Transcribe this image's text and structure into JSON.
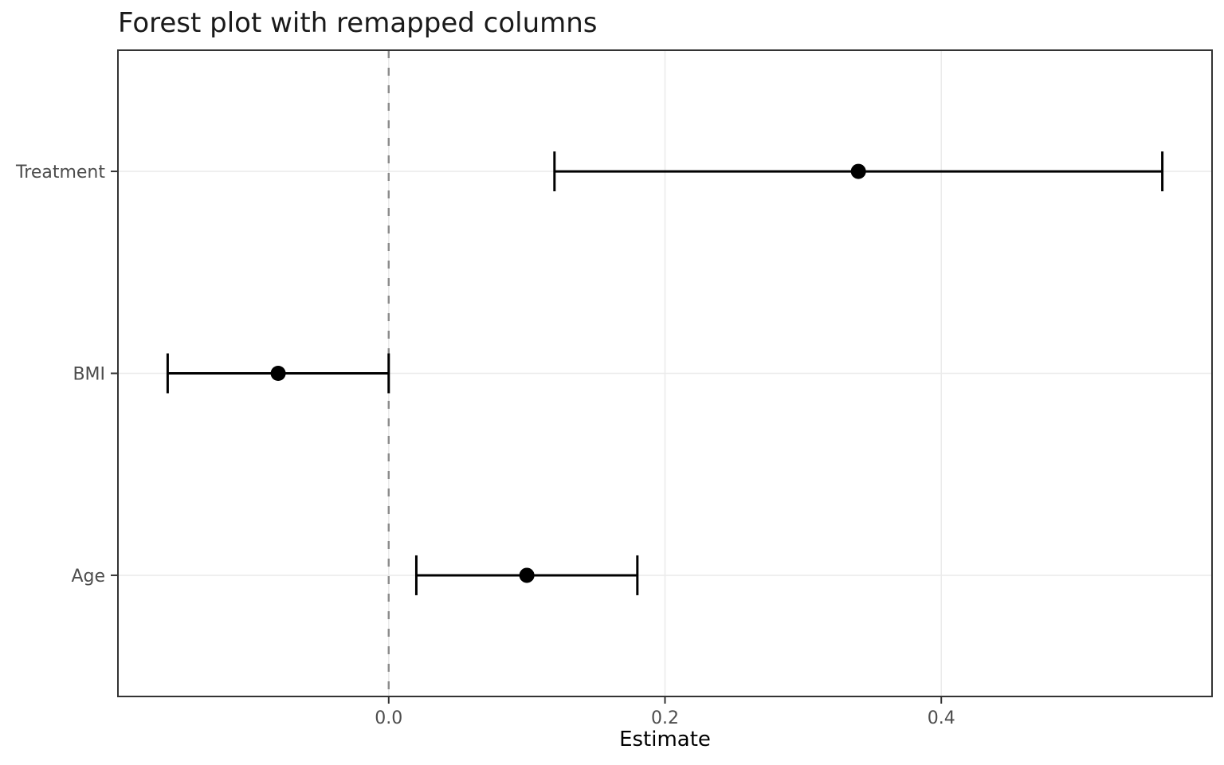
{
  "chart_data": {
    "type": "scatter",
    "variant": "forest-plot",
    "title": "Forest plot with remapped columns",
    "xlabel": "Estimate",
    "ylabel": "",
    "categories": [
      "Treatment",
      "BMI",
      "Age"
    ],
    "points": [
      {
        "label": "Treatment",
        "estimate": 0.34,
        "ci_low": 0.12,
        "ci_high": 0.56
      },
      {
        "label": "BMI",
        "estimate": -0.08,
        "ci_low": -0.16,
        "ci_high": 0.0
      },
      {
        "label": "Age",
        "estimate": 0.1,
        "ci_low": 0.02,
        "ci_high": 0.18
      }
    ],
    "x_ticks": [
      0.0,
      0.2,
      0.4
    ],
    "x_tick_labels": [
      "0.0",
      "0.2",
      "0.4"
    ],
    "xlim": [
      -0.196,
      0.596
    ],
    "reference_line": {
      "x": 0.0,
      "linetype": "dashed"
    },
    "grid": true,
    "legend": false,
    "colors": {
      "point": "#000000",
      "error_bar": "#000000",
      "reference_line": "#8c8c8c",
      "gridline": "#ebebeb",
      "panel_border": "#333333",
      "tick_mark": "#333333",
      "axis_text": "#4d4d4d",
      "title_text": "#1a1a1a",
      "axis_title_text": "#000000",
      "background": "#ffffff"
    }
  }
}
